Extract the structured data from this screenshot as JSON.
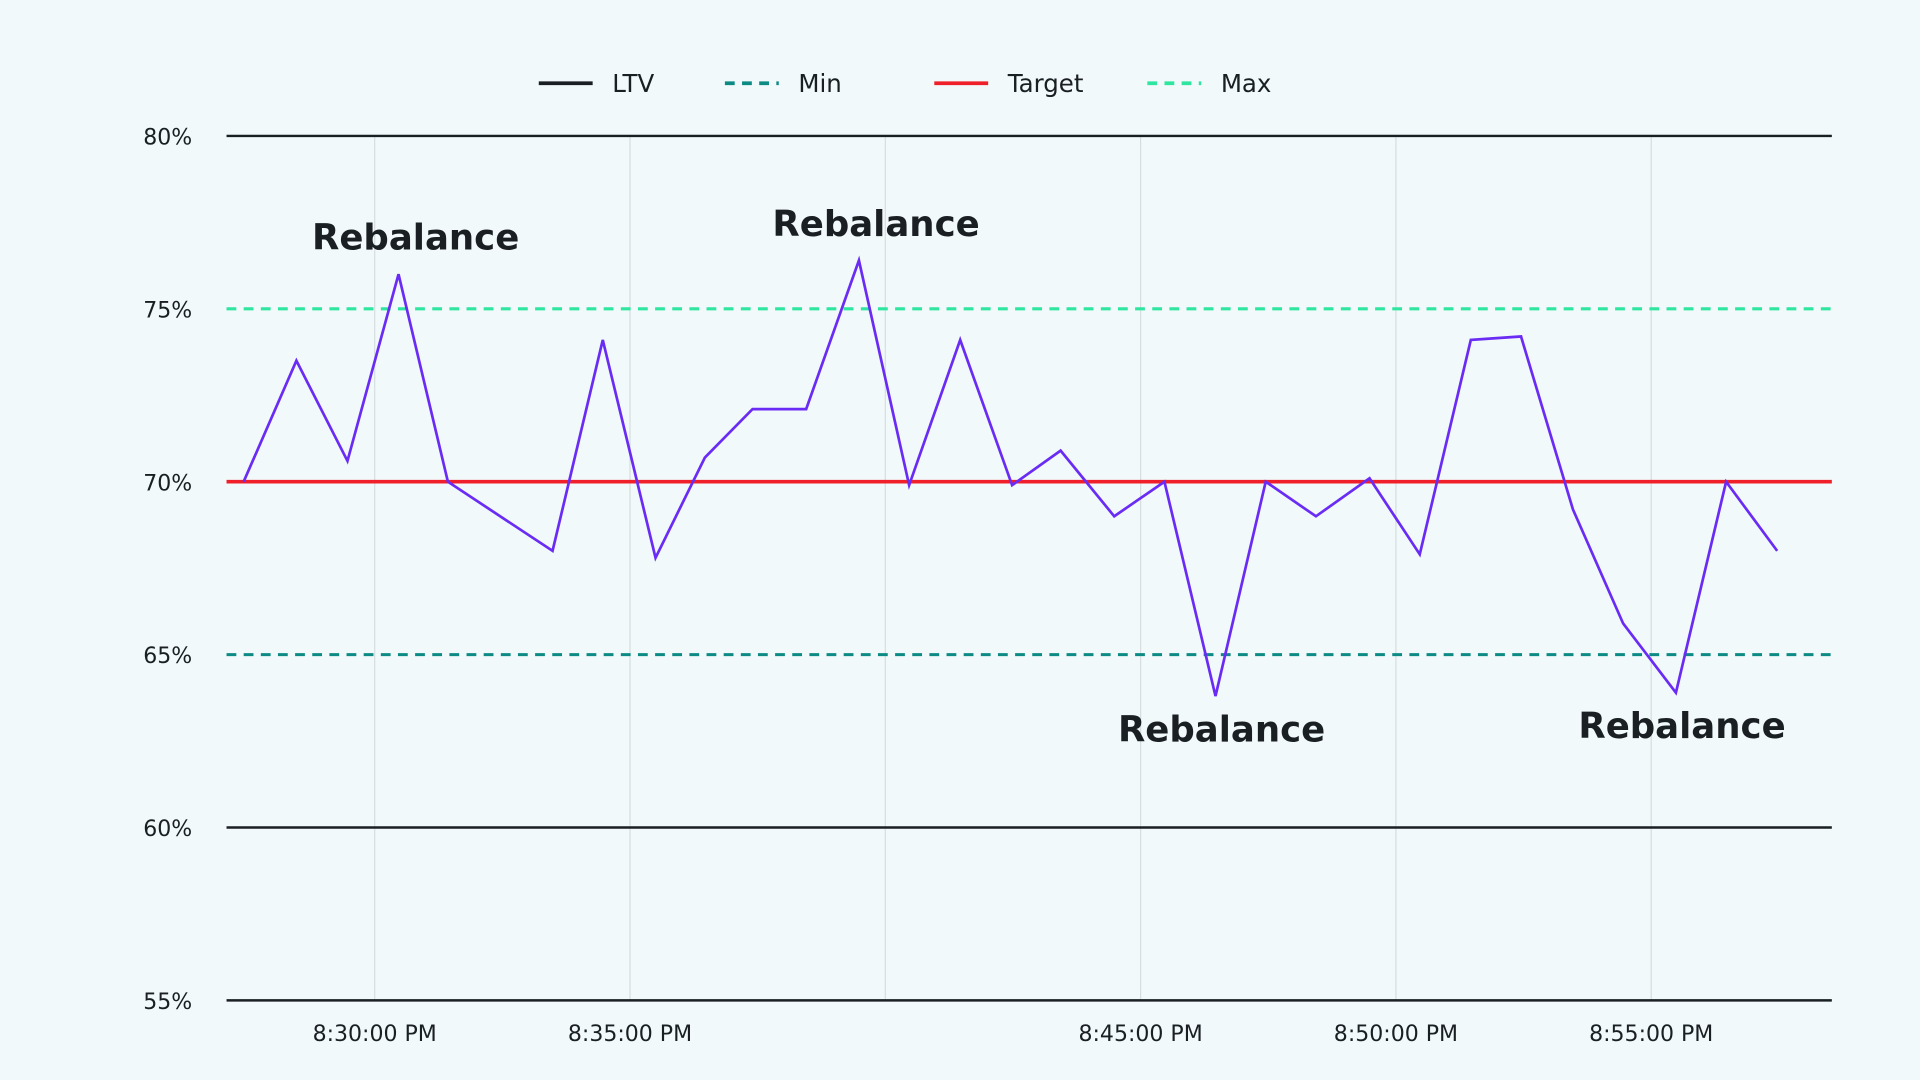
{
  "chart_data": {
    "type": "line",
    "title": "",
    "xlabel": "",
    "ylabel": "",
    "ylim": [
      55,
      80
    ],
    "y_ticks": [
      "55%",
      "60%",
      "65%",
      "70%",
      "75%",
      "80%"
    ],
    "y_tick_values": [
      55,
      60,
      65,
      70,
      75,
      80
    ],
    "x_ticks": [
      "8:30:00 PM",
      "8:35:00 PM",
      "8:45:00 PM",
      "8:50:00 PM",
      "8:55:00 PM"
    ],
    "x_gridlines": [
      "8:30:00 PM",
      "8:35:00 PM",
      "8:40:00 PM",
      "8:45:00 PM",
      "8:50:00 PM",
      "8:55:00 PM"
    ],
    "x_range": [
      "8:27:06 PM",
      "8:58:31 PM"
    ],
    "grid": true,
    "legend_placement": "top",
    "legend": [
      {
        "name": "LTV",
        "color": "#1a1f24",
        "style": "solid"
      },
      {
        "name": "Min",
        "color": "#0e8a85",
        "style": "dashed"
      },
      {
        "name": "Target",
        "color": "#f0202a",
        "style": "solid"
      },
      {
        "name": "Max",
        "color": "#2ee6a0",
        "style": "dashed"
      }
    ],
    "reference_lines": [
      {
        "name": "Min",
        "value": 65,
        "color": "#0e8a85",
        "style": "dashed"
      },
      {
        "name": "Target",
        "value": 70,
        "color": "#f0202a",
        "style": "solid"
      },
      {
        "name": "Max",
        "value": 75,
        "color": "#2ee6a0",
        "style": "dashed"
      }
    ],
    "series": [
      {
        "name": "LTV",
        "color": "#6a2cf5",
        "x": [
          "8:27:26 PM",
          "8:28:28 PM",
          "8:29:28 PM",
          "8:30:28 PM",
          "8:31:26 PM",
          "8:33:29 PM",
          "8:34:28 PM",
          "8:35:30 PM",
          "8:36:28 PM",
          "8:37:24 PM",
          "8:38:27 PM",
          "8:39:29 PM",
          "8:40:28 PM",
          "8:41:28 PM",
          "8:42:29 PM",
          "8:43:26 PM",
          "8:44:29 PM",
          "8:45:28 PM",
          "8:46:28 PM",
          "8:47:27 PM",
          "8:48:26 PM",
          "8:49:29 PM",
          "8:50:28 PM",
          "8:51:28 PM",
          "8:52:27 PM",
          "8:53:28 PM",
          "8:54:27 PM",
          "8:55:29 PM",
          "8:56:28 PM",
          "8:57:28 PM"
        ],
        "values": [
          70.0,
          73.5,
          70.6,
          76.0,
          70.0,
          68.0,
          74.1,
          67.8,
          70.7,
          72.1,
          72.1,
          76.4,
          69.9,
          74.1,
          69.9,
          70.9,
          69.0,
          70.0,
          63.8,
          70.0,
          69.0,
          70.1,
          67.9,
          74.1,
          74.2,
          69.2,
          65.9,
          63.9,
          70.0,
          68.0
        ]
      }
    ],
    "annotations": [
      {
        "text": "Rebalance",
        "x": "8:30:28 PM",
        "value": 76.0,
        "position": "above"
      },
      {
        "text": "Rebalance",
        "x": "8:39:29 PM",
        "value": 76.4,
        "position": "above"
      },
      {
        "text": "Rebalance",
        "x": "8:46:28 PM",
        "value": 63.8,
        "position": "below"
      },
      {
        "text": "Rebalance",
        "x": "8:55:29 PM",
        "value": 63.9,
        "position": "below"
      }
    ]
  }
}
